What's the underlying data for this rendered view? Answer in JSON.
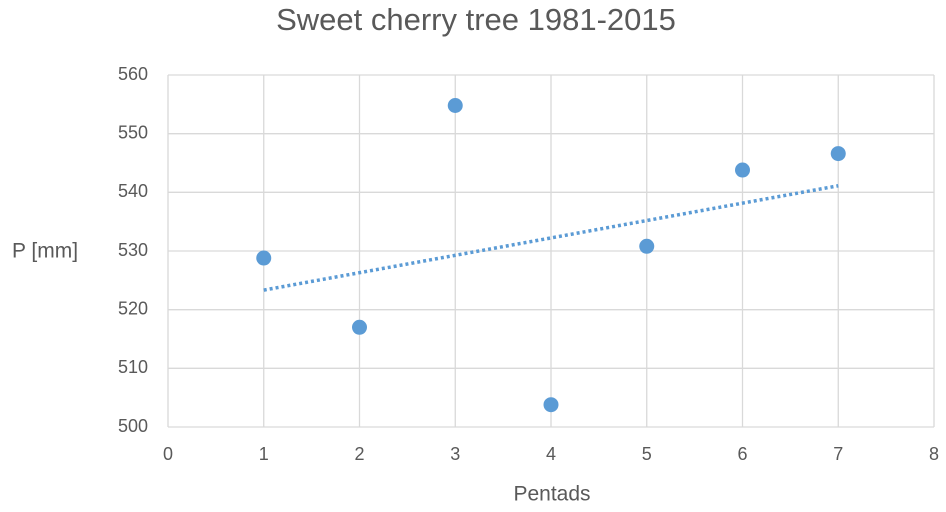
{
  "chart_data": {
    "type": "scatter",
    "title": "Sweet cherry tree 1981-2015",
    "x_label": "Pentads",
    "y_label": "P [mm]",
    "series": [
      {
        "name": "P",
        "color": "#5b9bd5",
        "x": [
          1,
          2,
          3,
          4,
          5,
          6,
          7
        ],
        "values": [
          528.8,
          517,
          554.8,
          503.8,
          530.8,
          543.8,
          546.6
        ],
        "trendline": "linear"
      }
    ],
    "xlim": [
      0,
      8
    ],
    "xticks": [
      0,
      1,
      2,
      3,
      4,
      5,
      6,
      7,
      8
    ],
    "ylim": [
      500,
      560
    ],
    "yticks": [
      500,
      510,
      520,
      530,
      540,
      550,
      560
    ],
    "grid": true
  }
}
